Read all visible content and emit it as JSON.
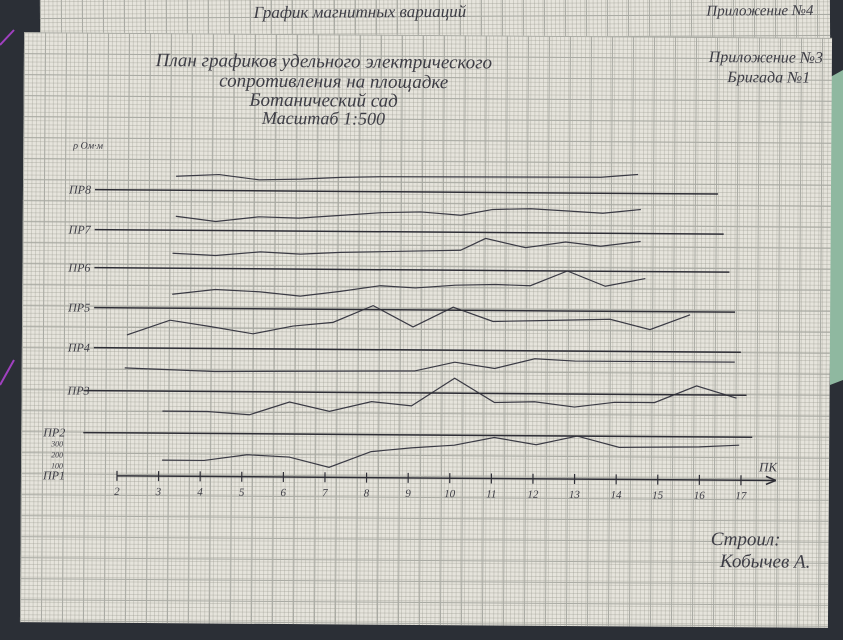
{
  "background_sheet": {
    "title": "График магнитных вариаций",
    "appendix": "Приложение №4"
  },
  "main_sheet": {
    "title_lines": [
      "План графиков удельного электрического",
      "сопротивления на площадке",
      "Ботанический сад"
    ],
    "scale": "Масштаб 1:500",
    "appendix": "Приложение №3",
    "brigade": "Бригада №1",
    "y_axis_label": "ρ Ом·м",
    "profiles": [
      "ПР8",
      "ПР7",
      "ПР6",
      "ПР5",
      "ПР4",
      "ПР3",
      "ПР2",
      "ПР1"
    ],
    "resistivity_ticks": [
      300,
      200,
      100
    ],
    "x_ticks": [
      2,
      3,
      4,
      5,
      6,
      7,
      8,
      9,
      10,
      11,
      12,
      13,
      14,
      15,
      16,
      17
    ],
    "x_axis_label": "ПК",
    "author_label": "Строил:",
    "author": "Кобычев А."
  }
}
